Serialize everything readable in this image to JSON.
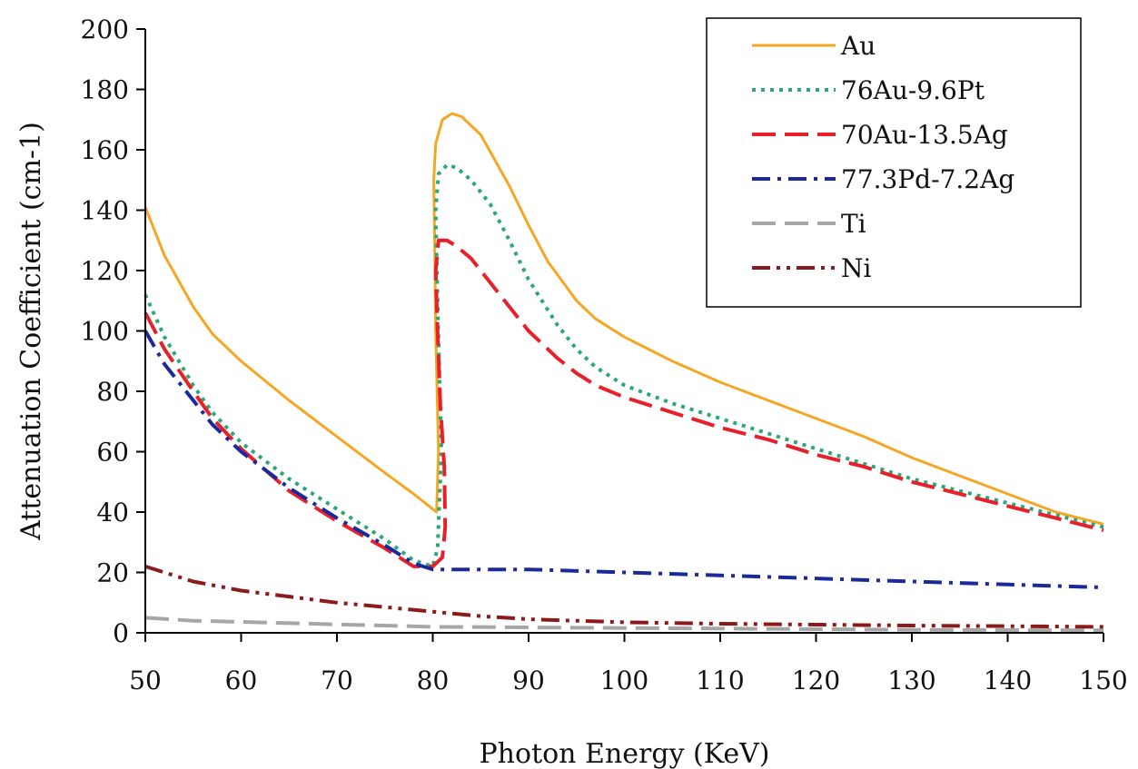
{
  "chart_data": {
    "type": "line",
    "title": "",
    "xlabel": "Photon Energy (KeV)",
    "ylabel": "Attenuation Coefficient (cm-1)",
    "xlim": [
      50,
      150
    ],
    "ylim": [
      0,
      200
    ],
    "xticks": [
      50,
      60,
      70,
      80,
      90,
      100,
      110,
      120,
      130,
      140,
      150
    ],
    "yticks": [
      0,
      20,
      40,
      60,
      80,
      100,
      120,
      140,
      160,
      180,
      200
    ],
    "grid": false,
    "legend_position": "top-right",
    "series": [
      {
        "name": "Au",
        "color": "#f5a623",
        "dash": "solid",
        "points": [
          [
            50,
            141
          ],
          [
            52,
            125
          ],
          [
            55,
            108
          ],
          [
            57,
            99
          ],
          [
            60,
            90
          ],
          [
            65,
            77
          ],
          [
            70,
            65
          ],
          [
            75,
            53
          ],
          [
            78,
            46
          ],
          [
            80,
            41
          ],
          [
            80.4,
            40
          ],
          [
            80.6,
            60
          ],
          [
            80.3,
            100
          ],
          [
            80.2,
            130
          ],
          [
            80.1,
            150
          ],
          [
            80.3,
            162
          ],
          [
            81,
            170
          ],
          [
            82,
            172
          ],
          [
            83,
            171
          ],
          [
            85,
            165
          ],
          [
            88,
            148
          ],
          [
            90,
            135
          ],
          [
            92,
            123
          ],
          [
            95,
            110
          ],
          [
            97,
            104
          ],
          [
            100,
            98
          ],
          [
            105,
            90
          ],
          [
            110,
            83
          ],
          [
            115,
            77
          ],
          [
            120,
            71
          ],
          [
            125,
            65
          ],
          [
            130,
            58
          ],
          [
            135,
            52
          ],
          [
            140,
            46
          ],
          [
            145,
            40
          ],
          [
            150,
            36
          ]
        ]
      },
      {
        "name": "76Au-9.6Pt",
        "color": "#2aa876",
        "dash": "dotted",
        "points": [
          [
            50,
            112
          ],
          [
            52,
            98
          ],
          [
            55,
            82
          ],
          [
            57,
            73
          ],
          [
            60,
            63
          ],
          [
            65,
            51
          ],
          [
            70,
            41
          ],
          [
            75,
            31
          ],
          [
            78,
            24
          ],
          [
            80,
            22
          ],
          [
            80.5,
            28
          ],
          [
            80.9,
            60
          ],
          [
            80.5,
            110
          ],
          [
            80.3,
            140
          ],
          [
            80.6,
            152
          ],
          [
            81.5,
            155
          ],
          [
            82.5,
            154
          ],
          [
            84,
            150
          ],
          [
            86,
            142
          ],
          [
            88,
            130
          ],
          [
            90,
            117
          ],
          [
            93,
            102
          ],
          [
            95,
            94
          ],
          [
            97,
            88
          ],
          [
            100,
            82
          ],
          [
            105,
            76
          ],
          [
            110,
            71
          ],
          [
            115,
            66
          ],
          [
            120,
            61
          ],
          [
            125,
            56
          ],
          [
            130,
            51
          ],
          [
            135,
            47
          ],
          [
            140,
            43
          ],
          [
            145,
            39
          ],
          [
            150,
            35
          ]
        ]
      },
      {
        "name": "70Au-13.5Ag",
        "color": "#e8202a",
        "dash": "longdash",
        "points": [
          [
            50,
            106
          ],
          [
            52,
            94
          ],
          [
            55,
            80
          ],
          [
            57,
            71
          ],
          [
            60,
            61
          ],
          [
            65,
            47
          ],
          [
            70,
            37
          ],
          [
            75,
            28
          ],
          [
            78,
            22
          ],
          [
            80,
            22
          ],
          [
            81,
            25
          ],
          [
            81.3,
            35
          ],
          [
            81.2,
            55
          ],
          [
            80.8,
            75
          ],
          [
            80.5,
            100
          ],
          [
            80.3,
            120
          ],
          [
            80.6,
            130
          ],
          [
            81.5,
            130
          ],
          [
            82.5,
            128
          ],
          [
            84,
            124
          ],
          [
            86,
            116
          ],
          [
            88,
            108
          ],
          [
            90,
            100
          ],
          [
            93,
            91
          ],
          [
            95,
            86
          ],
          [
            97,
            82
          ],
          [
            100,
            78
          ],
          [
            105,
            73
          ],
          [
            110,
            68
          ],
          [
            115,
            64
          ],
          [
            120,
            59
          ],
          [
            125,
            55
          ],
          [
            130,
            50
          ],
          [
            135,
            46
          ],
          [
            140,
            42
          ],
          [
            145,
            38
          ],
          [
            150,
            34
          ]
        ]
      },
      {
        "name": "77.3Pd-7.2Ag",
        "color": "#1a2a9a",
        "dash": "dashdot",
        "points": [
          [
            50,
            100
          ],
          [
            52,
            89
          ],
          [
            55,
            77
          ],
          [
            57,
            69
          ],
          [
            60,
            60
          ],
          [
            65,
            48
          ],
          [
            70,
            38
          ],
          [
            75,
            29
          ],
          [
            78,
            23
          ],
          [
            80,
            21
          ],
          [
            85,
            21
          ],
          [
            90,
            21
          ],
          [
            100,
            20
          ],
          [
            110,
            19
          ],
          [
            120,
            18
          ],
          [
            130,
            17
          ],
          [
            140,
            16
          ],
          [
            150,
            15
          ]
        ]
      },
      {
        "name": "Ti",
        "color": "#a6a6a6",
        "dash": "longdash",
        "points": [
          [
            50,
            5
          ],
          [
            55,
            4
          ],
          [
            60,
            3.6
          ],
          [
            70,
            2.8
          ],
          [
            80,
            2
          ],
          [
            90,
            1.8
          ],
          [
            100,
            1.6
          ],
          [
            110,
            1.4
          ],
          [
            120,
            1.2
          ],
          [
            130,
            1
          ],
          [
            140,
            0.9
          ],
          [
            150,
            0.8
          ]
        ]
      },
      {
        "name": "Ni",
        "color": "#8b1a1a",
        "dash": "dashdotdot",
        "points": [
          [
            50,
            22
          ],
          [
            55,
            17
          ],
          [
            60,
            14
          ],
          [
            65,
            12
          ],
          [
            70,
            10
          ],
          [
            75,
            8.5
          ],
          [
            80,
            7
          ],
          [
            85,
            5.5
          ],
          [
            90,
            4.5
          ],
          [
            100,
            3.5
          ],
          [
            110,
            3
          ],
          [
            120,
            2.7
          ],
          [
            130,
            2.4
          ],
          [
            140,
            2.2
          ],
          [
            150,
            2
          ]
        ]
      }
    ]
  }
}
